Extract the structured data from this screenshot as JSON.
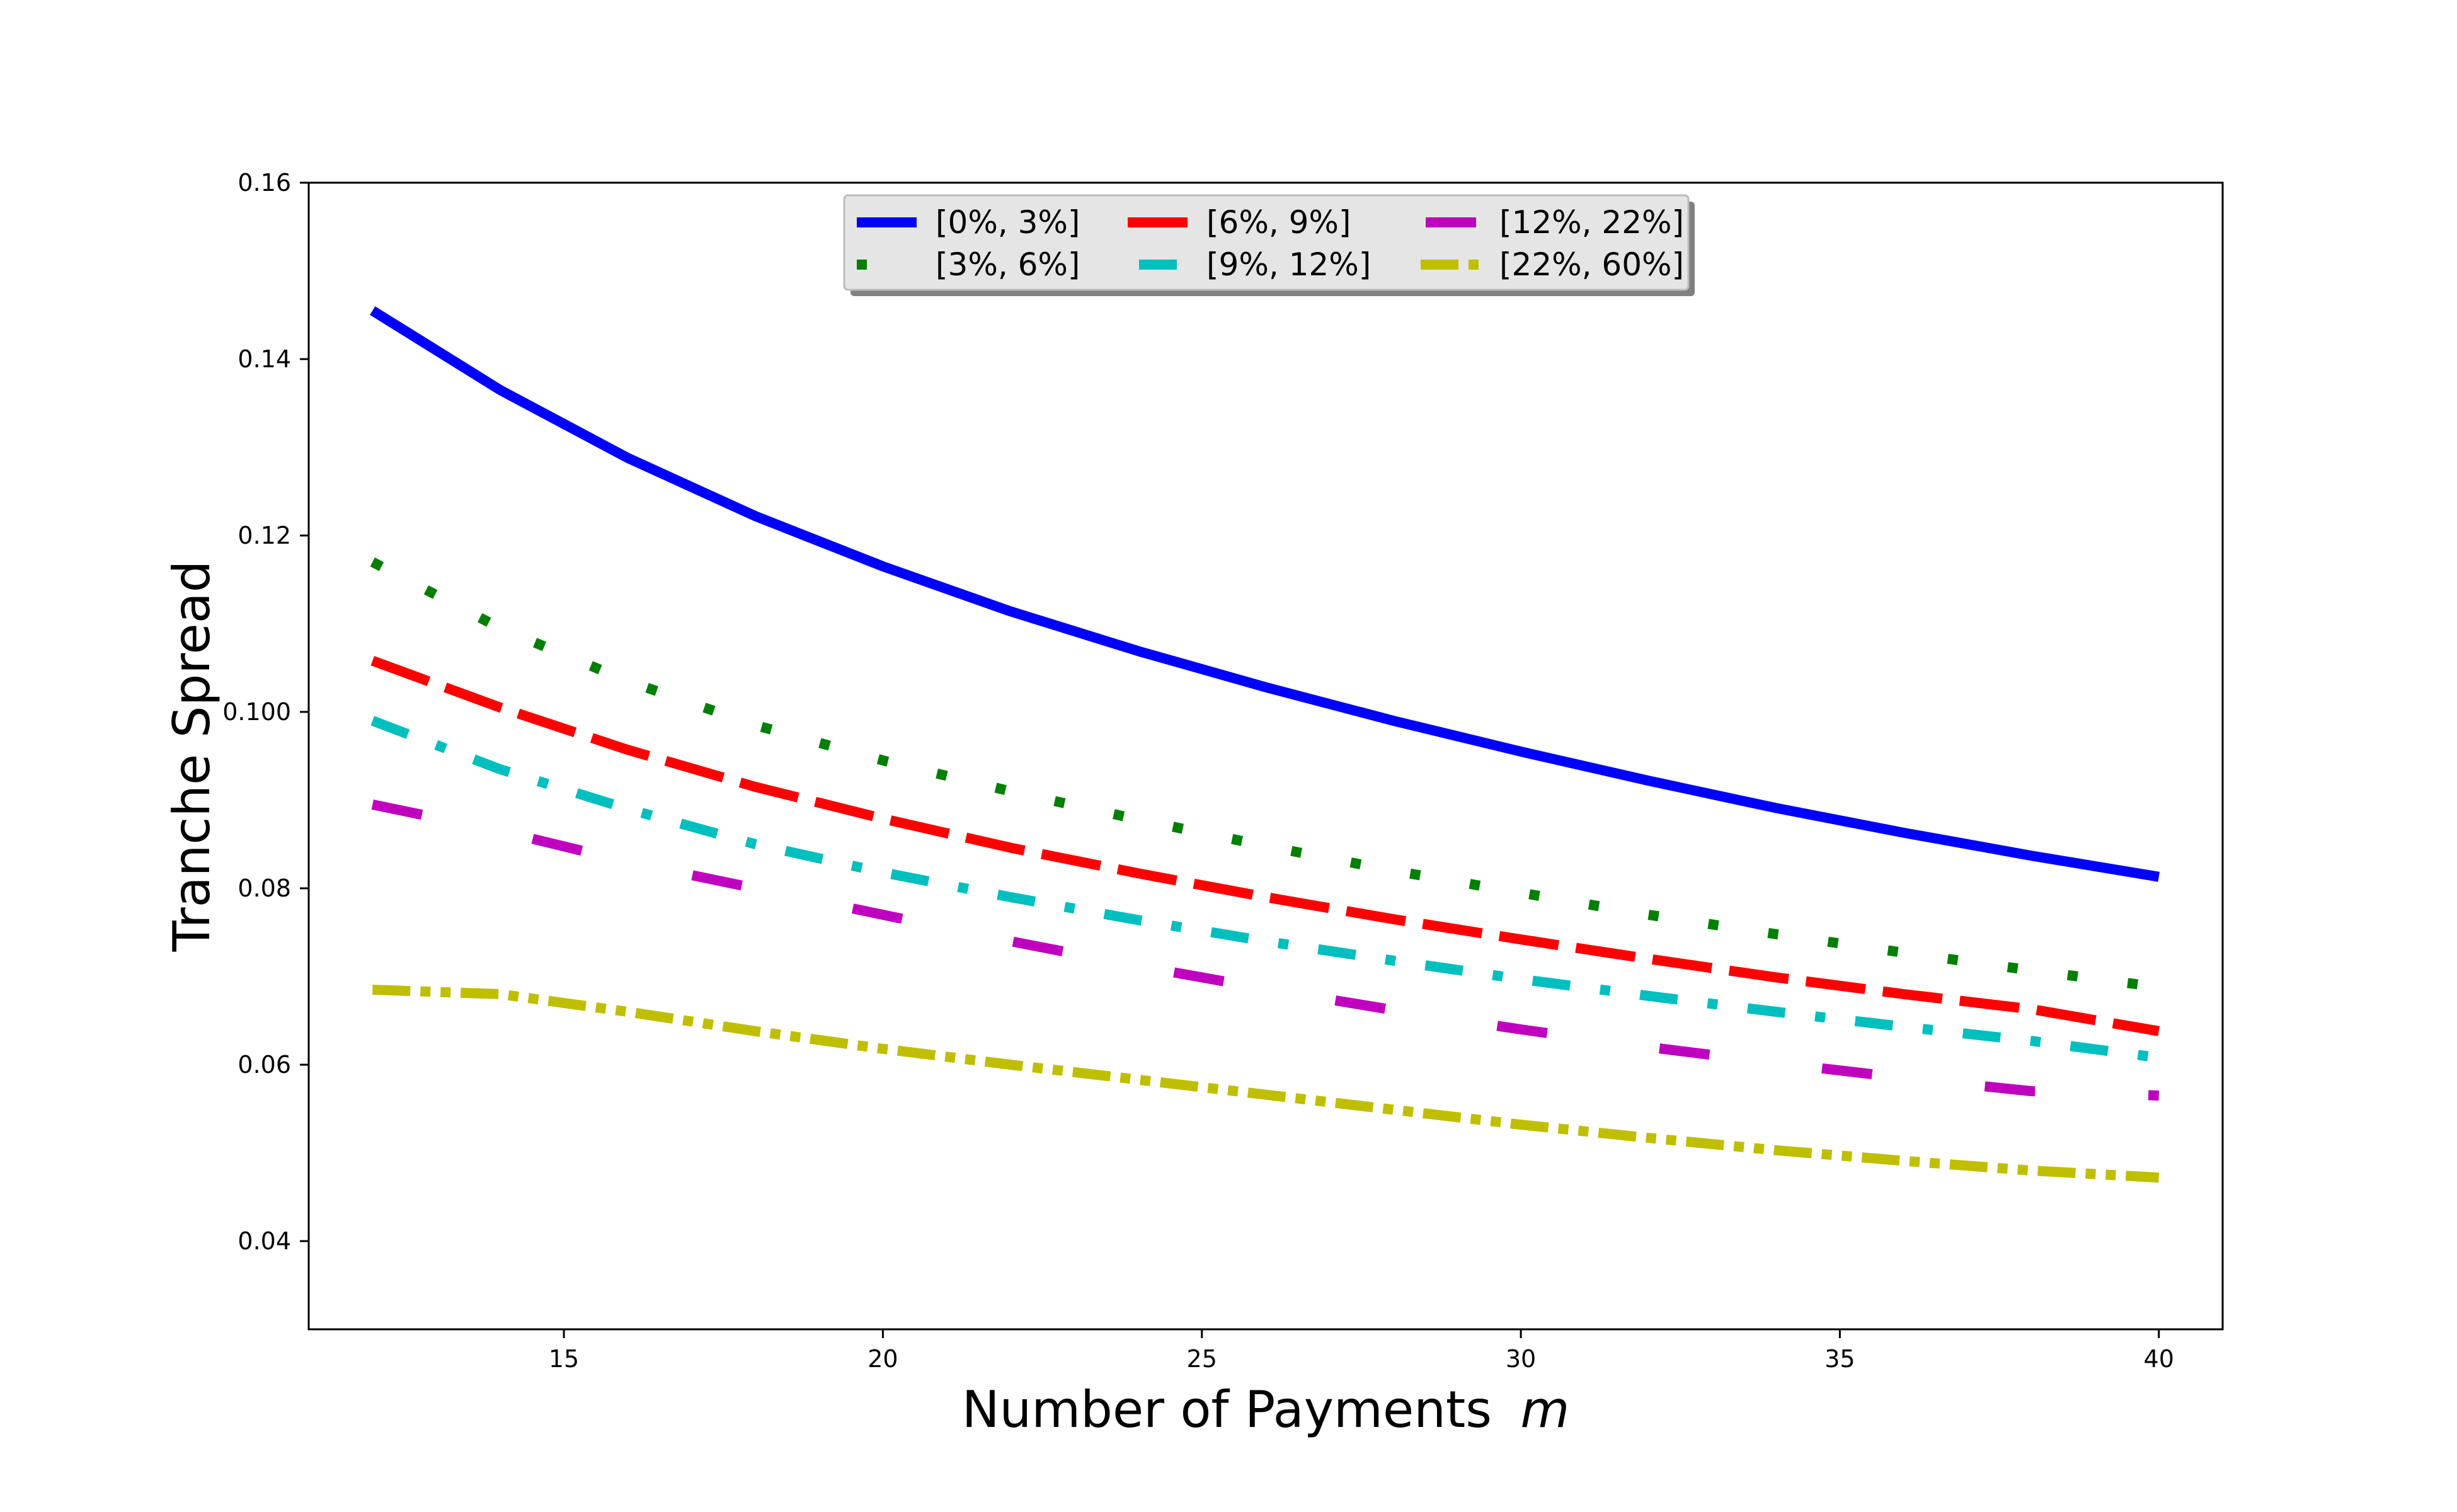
{
  "chart_data": {
    "type": "line",
    "title": "",
    "xlabel": "Number of Payments",
    "xlabel_var": "m",
    "ylabel": "Tranche Spread",
    "xlim": [
      11,
      41
    ],
    "ylim": [
      0.03,
      0.16
    ],
    "xticks": [
      15,
      20,
      25,
      30,
      35,
      40
    ],
    "yticks": [
      0.04,
      0.06,
      0.08,
      0.1,
      0.12,
      0.14,
      0.16
    ],
    "ytick_labels": [
      "0.04",
      "0.06",
      "0.08",
      "0.100",
      "0.12",
      "0.14",
      "0.16"
    ],
    "grid": false,
    "legend": {
      "placement": "upper center",
      "columns": 3,
      "shadow": true
    },
    "x": [
      12,
      14,
      16,
      18,
      20,
      22,
      24,
      26,
      28,
      30,
      32,
      34,
      36,
      38,
      40
    ],
    "series": [
      {
        "name": "[0%, 3%]",
        "color": "#0000ff",
        "style": "solid",
        "values": [
          0.1455,
          0.1365,
          0.1288,
          0.1222,
          0.1165,
          0.1114,
          0.1069,
          0.1028,
          0.099,
          0.0955,
          0.0922,
          0.0891,
          0.0863,
          0.0837,
          0.0813
        ]
      },
      {
        "name": "[3%, 6%]",
        "color": "#008000",
        "style": "dotted",
        "values": [
          0.117,
          0.1095,
          0.1035,
          0.0985,
          0.0945,
          0.091,
          0.0878,
          0.0848,
          0.082,
          0.0795,
          0.077,
          0.0748,
          0.0727,
          0.0707,
          0.0688
        ]
      },
      {
        "name": "[6%, 9%]",
        "color": "#ff0000",
        "style": "dashed",
        "values": [
          0.1058,
          0.1005,
          0.0957,
          0.0915,
          0.0879,
          0.0846,
          0.0817,
          0.079,
          0.0765,
          0.0742,
          0.072,
          0.0699,
          0.068,
          0.0663,
          0.0638
        ]
      },
      {
        "name": "[9%, 12%]",
        "color": "#00bfbf",
        "style": "dashdot",
        "values": [
          0.099,
          0.0935,
          0.089,
          0.085,
          0.0818,
          0.079,
          0.0764,
          0.074,
          0.0718,
          0.0697,
          0.0678,
          0.066,
          0.0643,
          0.0627,
          0.0608
        ]
      },
      {
        "name": "[12%, 22%]",
        "color": "#bf00bf",
        "style": "longdash",
        "values": [
          0.0895,
          0.0865,
          0.083,
          0.08,
          0.077,
          0.074,
          0.0712,
          0.0686,
          0.0662,
          0.064,
          0.062,
          0.0602,
          0.0585,
          0.057,
          0.0565
        ]
      },
      {
        "name": "[22%, 60%]",
        "color": "#bfbf00",
        "style": "dashdotdot",
        "values": [
          0.0685,
          0.068,
          0.066,
          0.0638,
          0.0618,
          0.06,
          0.0583,
          0.0566,
          0.0549,
          0.0532,
          0.0517,
          0.0503,
          0.0491,
          0.048,
          0.0472
        ]
      }
    ]
  }
}
